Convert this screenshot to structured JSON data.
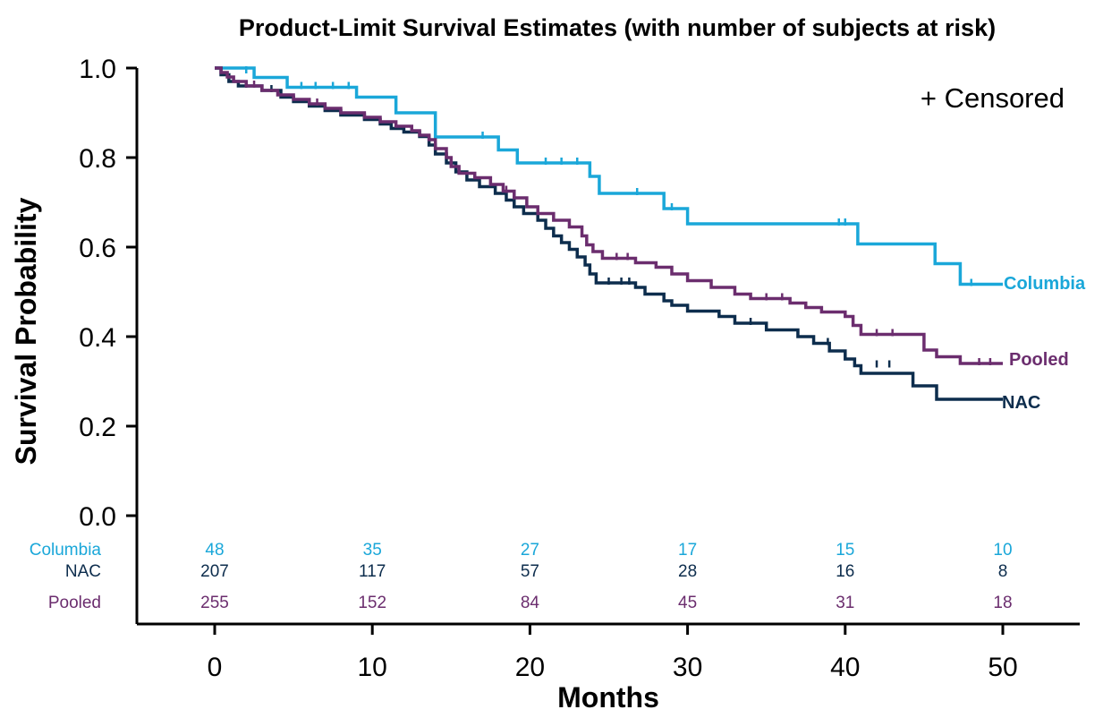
{
  "chart_data": {
    "type": "line",
    "subtype": "kaplan-meier-step",
    "title": "Product-Limit Survival Estimates (with number of subjects at risk)",
    "xlabel": "Months",
    "ylabel": "Survival Probability",
    "xlim": [
      0,
      50
    ],
    "ylim": [
      0.0,
      1.0
    ],
    "xticks": [
      "0",
      "10",
      "20",
      "30",
      "40",
      "50"
    ],
    "yticks": [
      "0.0",
      "0.2",
      "0.4",
      "0.6",
      "0.8",
      "1.0"
    ],
    "legend": "+ Censored",
    "legend_placement": "top-right",
    "grid": false,
    "series": [
      {
        "name": "Columbia",
        "color": "#1AA7D9",
        "label": "Columbia",
        "points": [
          [
            0,
            1.0
          ],
          [
            2.5,
            0.979
          ],
          [
            4.6,
            0.957
          ],
          [
            9.0,
            0.935
          ],
          [
            11.5,
            0.9
          ],
          [
            14.0,
            0.846
          ],
          [
            18.0,
            0.817
          ],
          [
            19.2,
            0.788
          ],
          [
            23.8,
            0.758
          ],
          [
            24.4,
            0.72
          ],
          [
            28.5,
            0.686
          ],
          [
            30.0,
            0.652
          ],
          [
            40.8,
            0.607
          ],
          [
            45.7,
            0.563
          ],
          [
            47.3,
            0.517
          ],
          [
            50.0,
            0.517
          ]
        ],
        "censored": [
          [
            2.0,
            0.992
          ],
          [
            5.5,
            0.957
          ],
          [
            6.4,
            0.957
          ],
          [
            7.5,
            0.957
          ],
          [
            8.5,
            0.957
          ],
          [
            17.0,
            0.846
          ],
          [
            21.0,
            0.788
          ],
          [
            22.0,
            0.788
          ],
          [
            23.0,
            0.788
          ],
          [
            26.8,
            0.72
          ],
          [
            29.0,
            0.686
          ],
          [
            39.6,
            0.652
          ],
          [
            40.0,
            0.652
          ],
          [
            48.0,
            0.517
          ]
        ]
      },
      {
        "name": "NAC",
        "color": "#0D2D4D",
        "label": "NAC",
        "points": [
          [
            0,
            1.0
          ],
          [
            0.4,
            0.985
          ],
          [
            0.9,
            0.97
          ],
          [
            1.5,
            0.96
          ],
          [
            3.0,
            0.95
          ],
          [
            4.2,
            0.935
          ],
          [
            5.0,
            0.925
          ],
          [
            6.0,
            0.915
          ],
          [
            7.0,
            0.905
          ],
          [
            8.0,
            0.895
          ],
          [
            9.5,
            0.885
          ],
          [
            10.5,
            0.875
          ],
          [
            11.2,
            0.865
          ],
          [
            12.0,
            0.857
          ],
          [
            13.0,
            0.847
          ],
          [
            13.6,
            0.828
          ],
          [
            14.0,
            0.808
          ],
          [
            14.7,
            0.788
          ],
          [
            15.3,
            0.768
          ],
          [
            16.0,
            0.75
          ],
          [
            16.8,
            0.735
          ],
          [
            17.8,
            0.72
          ],
          [
            18.5,
            0.705
          ],
          [
            19.0,
            0.69
          ],
          [
            19.6,
            0.675
          ],
          [
            20.5,
            0.66
          ],
          [
            21.0,
            0.642
          ],
          [
            21.5,
            0.625
          ],
          [
            22.0,
            0.61
          ],
          [
            22.5,
            0.595
          ],
          [
            23.0,
            0.578
          ],
          [
            23.5,
            0.56
          ],
          [
            23.8,
            0.54
          ],
          [
            24.2,
            0.52
          ],
          [
            26.7,
            0.51
          ],
          [
            27.3,
            0.495
          ],
          [
            28.5,
            0.48
          ],
          [
            29.0,
            0.47
          ],
          [
            30.0,
            0.457
          ],
          [
            32.0,
            0.445
          ],
          [
            33.0,
            0.43
          ],
          [
            35.0,
            0.415
          ],
          [
            37.0,
            0.4
          ],
          [
            38.0,
            0.385
          ],
          [
            39.0,
            0.368
          ],
          [
            40.0,
            0.35
          ],
          [
            40.6,
            0.335
          ],
          [
            41.0,
            0.318
          ],
          [
            44.3,
            0.29
          ],
          [
            45.8,
            0.26
          ],
          [
            50.0,
            0.26
          ]
        ],
        "censored": [
          [
            2.0,
            0.96
          ],
          [
            3.6,
            0.95
          ],
          [
            25.0,
            0.52
          ],
          [
            25.8,
            0.52
          ],
          [
            26.3,
            0.52
          ],
          [
            34.0,
            0.43
          ],
          [
            38.9,
            0.385
          ],
          [
            42.0,
            0.335
          ],
          [
            42.8,
            0.335
          ]
        ]
      },
      {
        "name": "Pooled",
        "color": "#6B2D6E",
        "label": "Pooled",
        "points": [
          [
            0,
            1.0
          ],
          [
            0.4,
            0.99
          ],
          [
            0.8,
            0.98
          ],
          [
            1.2,
            0.97
          ],
          [
            2.0,
            0.96
          ],
          [
            3.0,
            0.95
          ],
          [
            4.0,
            0.94
          ],
          [
            5.0,
            0.93
          ],
          [
            6.0,
            0.92
          ],
          [
            7.0,
            0.91
          ],
          [
            8.0,
            0.9
          ],
          [
            9.5,
            0.89
          ],
          [
            10.5,
            0.88
          ],
          [
            11.5,
            0.87
          ],
          [
            12.5,
            0.86
          ],
          [
            13.0,
            0.85
          ],
          [
            13.6,
            0.84
          ],
          [
            14.0,
            0.82
          ],
          [
            14.7,
            0.8
          ],
          [
            15.0,
            0.78
          ],
          [
            15.5,
            0.765
          ],
          [
            16.5,
            0.755
          ],
          [
            17.5,
            0.74
          ],
          [
            18.3,
            0.725
          ],
          [
            19.0,
            0.71
          ],
          [
            19.8,
            0.69
          ],
          [
            20.5,
            0.675
          ],
          [
            21.5,
            0.66
          ],
          [
            22.5,
            0.645
          ],
          [
            23.3,
            0.625
          ],
          [
            23.6,
            0.605
          ],
          [
            24.0,
            0.59
          ],
          [
            24.6,
            0.575
          ],
          [
            26.7,
            0.565
          ],
          [
            28.0,
            0.555
          ],
          [
            29.0,
            0.54
          ],
          [
            30.0,
            0.525
          ],
          [
            31.5,
            0.51
          ],
          [
            33.0,
            0.495
          ],
          [
            34.0,
            0.485
          ],
          [
            36.5,
            0.475
          ],
          [
            37.5,
            0.465
          ],
          [
            38.5,
            0.455
          ],
          [
            40.0,
            0.445
          ],
          [
            40.5,
            0.425
          ],
          [
            41.0,
            0.405
          ],
          [
            45.0,
            0.37
          ],
          [
            45.8,
            0.355
          ],
          [
            47.3,
            0.34
          ],
          [
            50.0,
            0.34
          ]
        ],
        "censored": [
          [
            2.5,
            0.96
          ],
          [
            6.5,
            0.92
          ],
          [
            18.5,
            0.725
          ],
          [
            25.5,
            0.575
          ],
          [
            26.2,
            0.575
          ],
          [
            35.0,
            0.485
          ],
          [
            36.0,
            0.485
          ],
          [
            42.0,
            0.405
          ],
          [
            43.0,
            0.405
          ],
          [
            48.5,
            0.34
          ],
          [
            49.2,
            0.34
          ]
        ]
      }
    ],
    "risk_table": {
      "times": [
        0,
        10,
        20,
        30,
        40,
        50
      ],
      "rows": [
        {
          "label": "Columbia",
          "color": "#1AA7D9",
          "values": [
            "48",
            "35",
            "27",
            "17",
            "15",
            "10"
          ]
        },
        {
          "label": "NAC",
          "color": "#0D2D4D",
          "values": [
            "207",
            "117",
            "57",
            "28",
            "16",
            "8"
          ]
        },
        {
          "label": "Pooled",
          "color": "#6B2D6E",
          "values": [
            "255",
            "152",
            "84",
            "45",
            "31",
            "18"
          ]
        }
      ]
    }
  }
}
